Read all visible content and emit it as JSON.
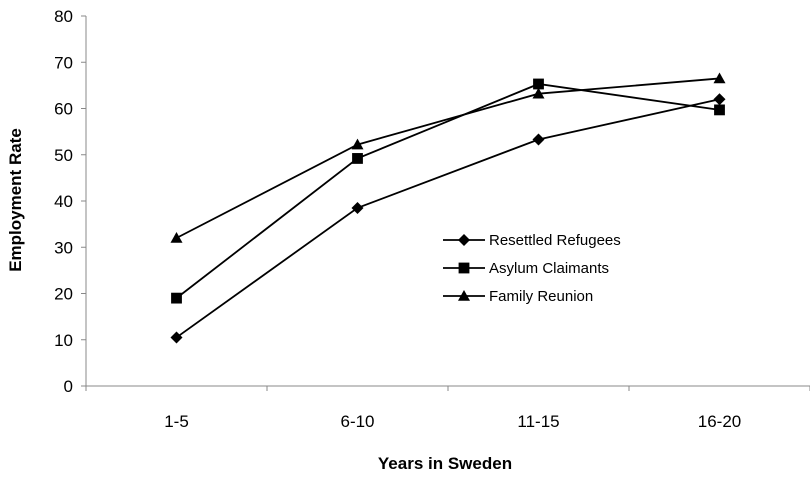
{
  "chart_data": {
    "type": "line",
    "title": "",
    "xlabel": "Years in Sweden",
    "ylabel": "Employment Rate",
    "ylim": [
      0,
      80
    ],
    "yticks": [
      0,
      10,
      20,
      30,
      40,
      50,
      60,
      70,
      80
    ],
    "grid": false,
    "legend_position": "center-right",
    "categories": [
      "1-5",
      "6-10",
      "11-15",
      "16-20"
    ],
    "series": [
      {
        "name": "Resettled Refugees",
        "marker": "diamond",
        "color": "#000000",
        "values": [
          10.5,
          38.5,
          53.3,
          62.0
        ]
      },
      {
        "name": "Asylum Claimants",
        "marker": "square",
        "color": "#000000",
        "values": [
          19.0,
          49.2,
          65.3,
          59.7
        ]
      },
      {
        "name": "Family Reunion",
        "marker": "triangle",
        "color": "#000000",
        "values": [
          32.0,
          52.2,
          63.2,
          66.5
        ]
      }
    ]
  }
}
